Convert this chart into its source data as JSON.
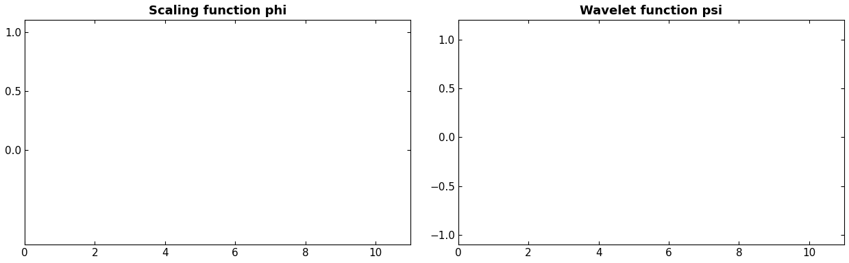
{
  "title_phi": "Scaling function phi",
  "title_psi": "Wavelet function psi",
  "phi_color": "#cc0000",
  "psi_color": "#00cc00",
  "xlim": [
    0,
    11
  ],
  "phi_ylim": [
    -0.8,
    1.1
  ],
  "psi_ylim": [
    -1.1,
    1.2
  ],
  "phi_yticks": [
    0,
    0.5,
    1
  ],
  "psi_yticks": [
    -1,
    -0.5,
    0,
    0.5,
    1
  ],
  "xticks": [
    0,
    2,
    4,
    6,
    8,
    10
  ],
  "line_width": 1.5,
  "title_fontsize": 13,
  "tick_fontsize": 11,
  "background_color": "#ffffff"
}
